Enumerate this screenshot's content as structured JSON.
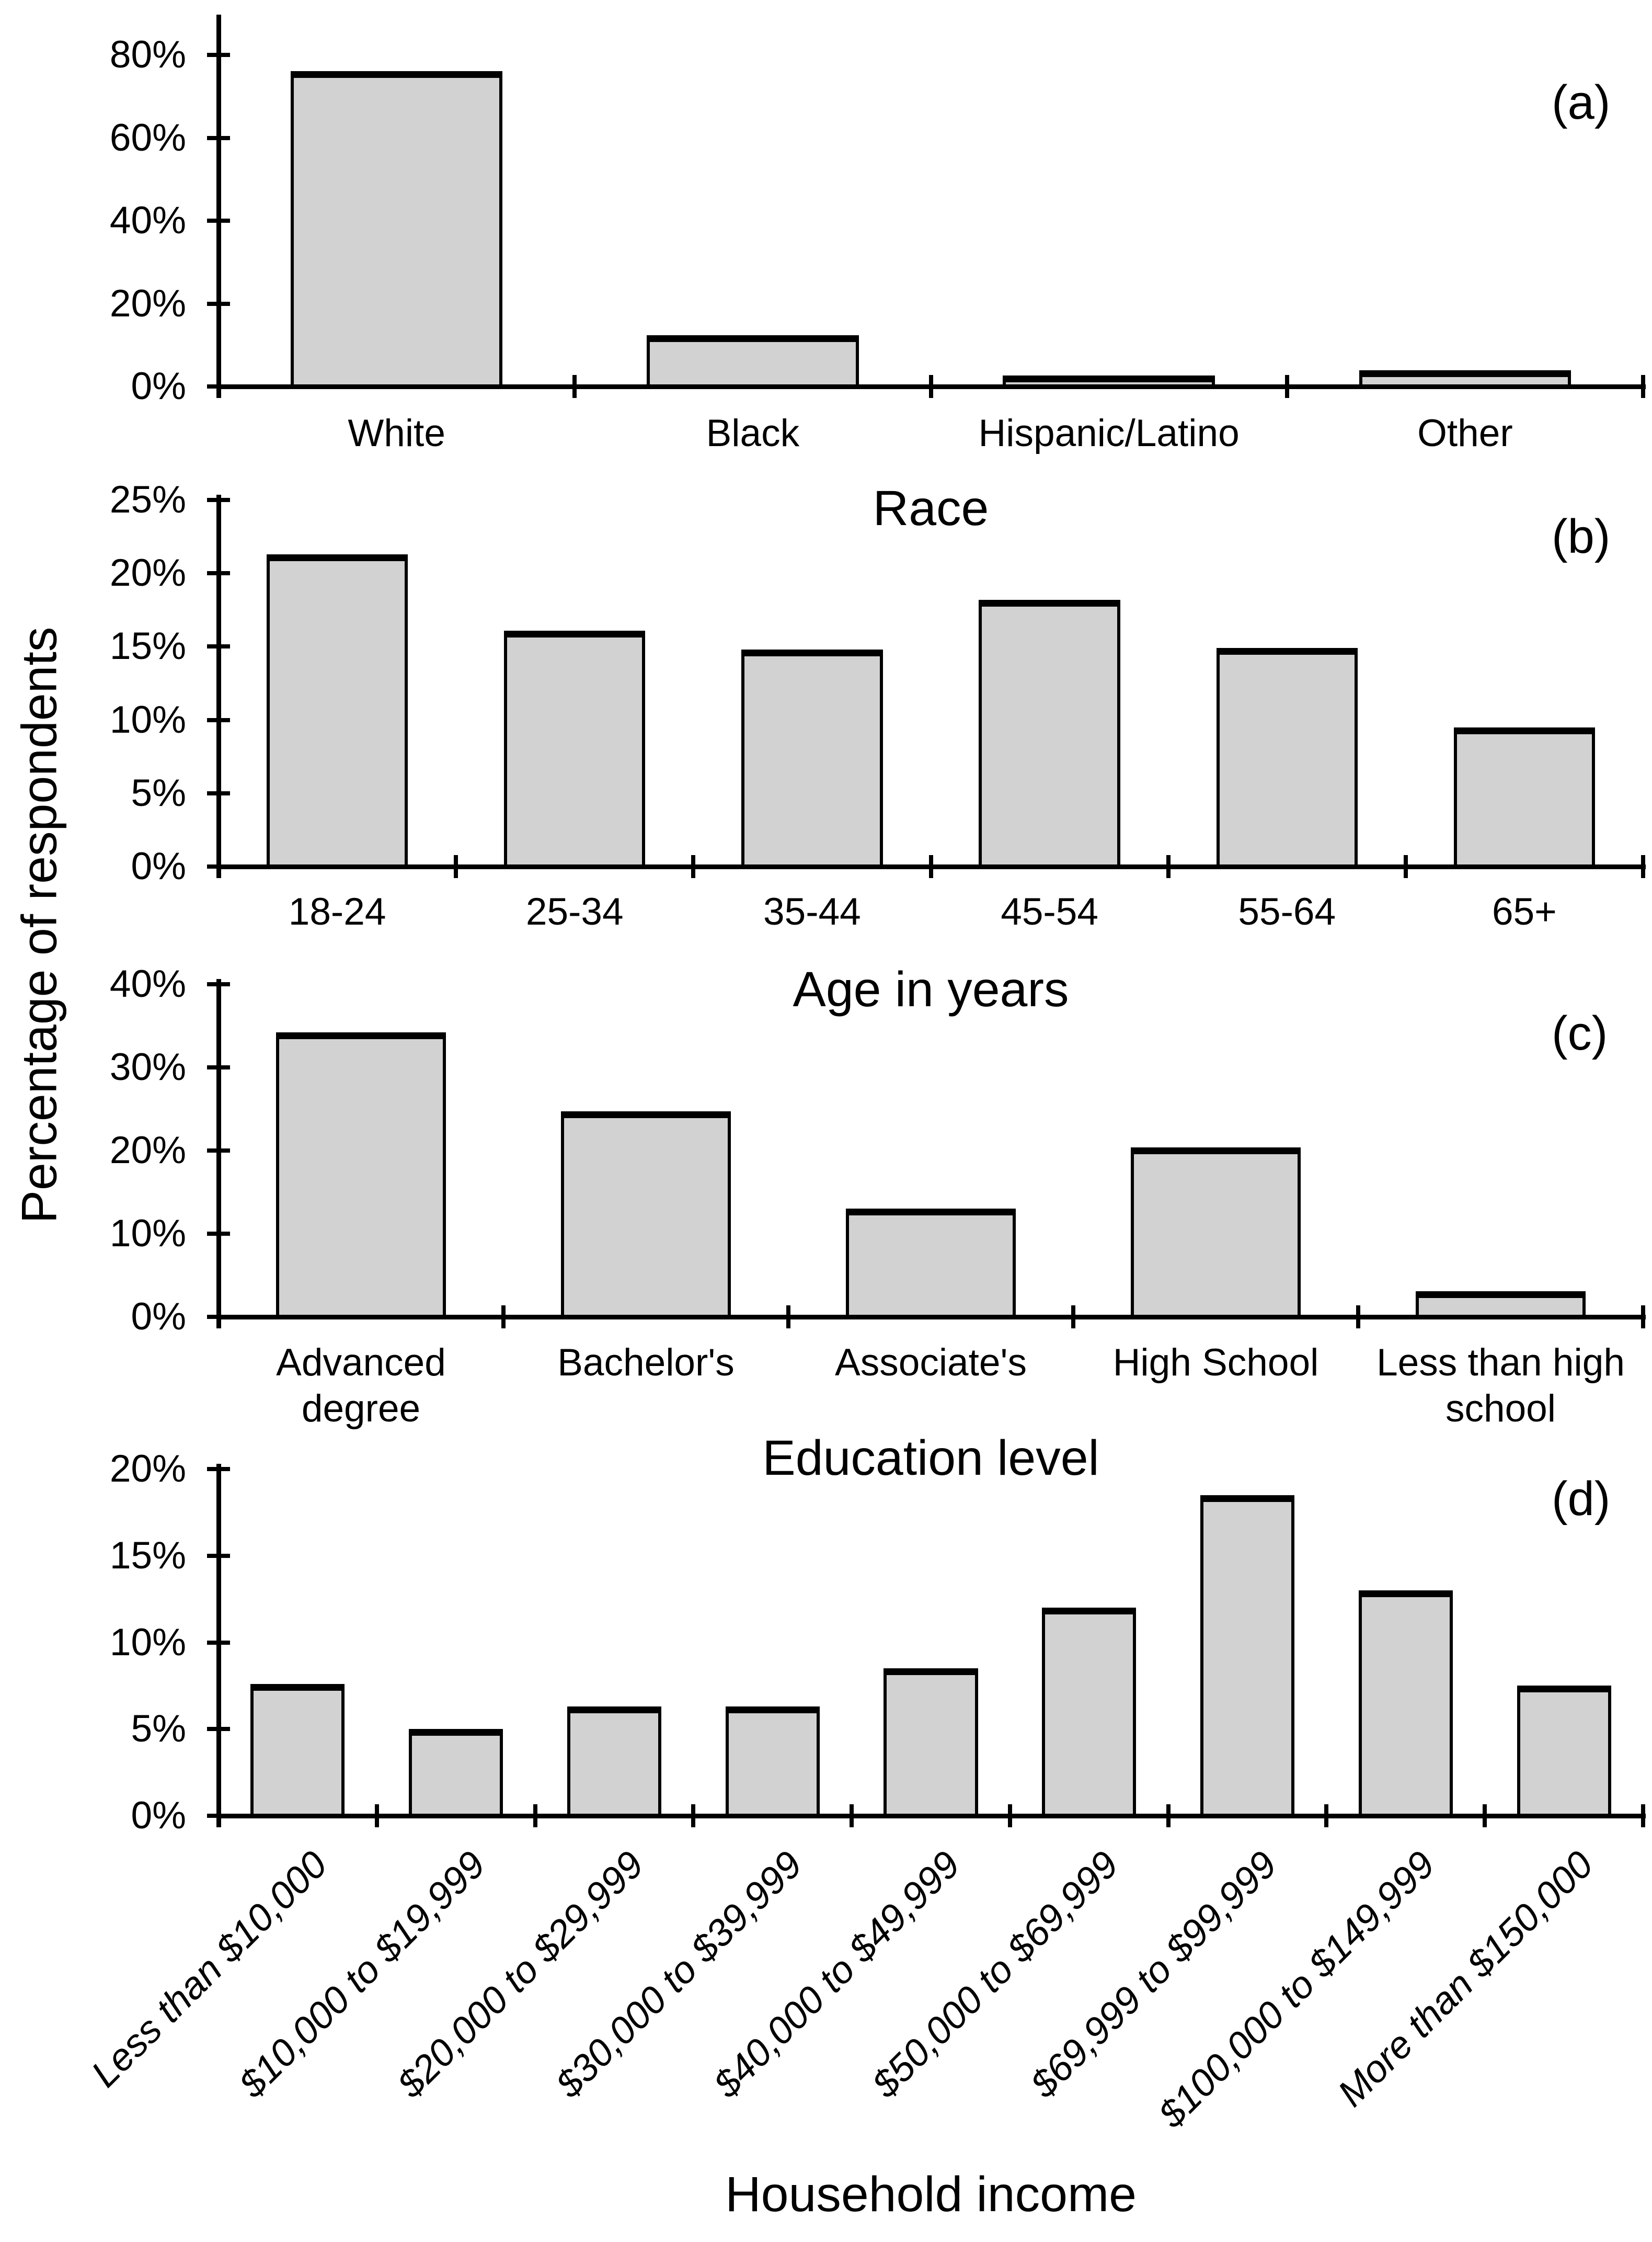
{
  "figure": {
    "y_axis_label": "Percentage of respondents",
    "bar_fill_color": "#d2d2d2",
    "bar_border_color": "#000000",
    "axis_color": "#000000",
    "background_color": "#ffffff"
  },
  "chart_data": [
    {
      "type": "bar",
      "panel_label": "(a)",
      "xlabel": "Race",
      "ylabel": "Percentage of respondents",
      "categories": [
        "White",
        "Black",
        "Hispanic/Latino",
        "Other"
      ],
      "values": [
        76.1,
        12.4,
        2.6,
        3.9
      ],
      "ylim": [
        0,
        88
      ],
      "grid": false,
      "legend": false,
      "yticks": [
        {
          "value": 0,
          "label": "0%"
        },
        {
          "value": 20,
          "label": "20%"
        },
        {
          "value": 40,
          "label": "40%"
        },
        {
          "value": 60,
          "label": "60%"
        },
        {
          "value": 80,
          "label": "80%"
        }
      ]
    },
    {
      "type": "bar",
      "panel_label": "(b)",
      "xlabel": "Age in years",
      "ylabel": "Percentage of respondents",
      "categories": [
        "18-24",
        "25-34",
        "35-44",
        "45-54",
        "55-64",
        "65+"
      ],
      "values": [
        21.3,
        16.1,
        14.8,
        18.2,
        14.9,
        9.5
      ],
      "ylim": [
        0,
        25.4
      ],
      "grid": false,
      "legend": false,
      "yticks": [
        {
          "value": 0,
          "label": "0%"
        },
        {
          "value": 5,
          "label": "5%"
        },
        {
          "value": 10,
          "label": "10%"
        },
        {
          "value": 15,
          "label": "15%"
        },
        {
          "value": 20,
          "label": "20%"
        },
        {
          "value": 25,
          "label": "25%"
        }
      ]
    },
    {
      "type": "bar",
      "panel_label": "(c)",
      "xlabel": "Education level",
      "ylabel": "Percentage of respondents",
      "categories": [
        "Advanced\ndegree",
        "Bachelor's",
        "Associate's",
        "High School",
        "Less than high\nschool"
      ],
      "values": [
        34.2,
        24.7,
        13.0,
        20.4,
        3.1
      ],
      "ylim": [
        0,
        40.6
      ],
      "grid": false,
      "legend": false,
      "yticks": [
        {
          "value": 0,
          "label": "0%"
        },
        {
          "value": 10,
          "label": "10%"
        },
        {
          "value": 20,
          "label": "20%"
        },
        {
          "value": 30,
          "label": "30%"
        },
        {
          "value": 40,
          "label": "40%"
        }
      ]
    },
    {
      "type": "bar",
      "panel_label": "(d)",
      "xlabel": "Household income",
      "ylabel": "Percentage of respondents",
      "categories": [
        "Less than $10,000",
        "$10,000 to $19,999",
        "$20,000 to $29,999",
        "$30,000 to $39,999",
        "$40,000 to $49,999",
        "$50,000 to $69,999",
        "$69,999 to $99,999",
        "$100,000 to $149,999",
        "More than $150,000"
      ],
      "values": [
        7.6,
        5.0,
        6.3,
        6.3,
        8.5,
        12.0,
        18.5,
        13.0,
        7.5
      ],
      "ylim": [
        0,
        20.3
      ],
      "grid": false,
      "legend": false,
      "rotated_x_labels": true,
      "yticks": [
        {
          "value": 0,
          "label": "0%"
        },
        {
          "value": 5,
          "label": "5%"
        },
        {
          "value": 10,
          "label": "10%"
        },
        {
          "value": 15,
          "label": "15%"
        },
        {
          "value": 20,
          "label": "20%"
        }
      ]
    }
  ]
}
